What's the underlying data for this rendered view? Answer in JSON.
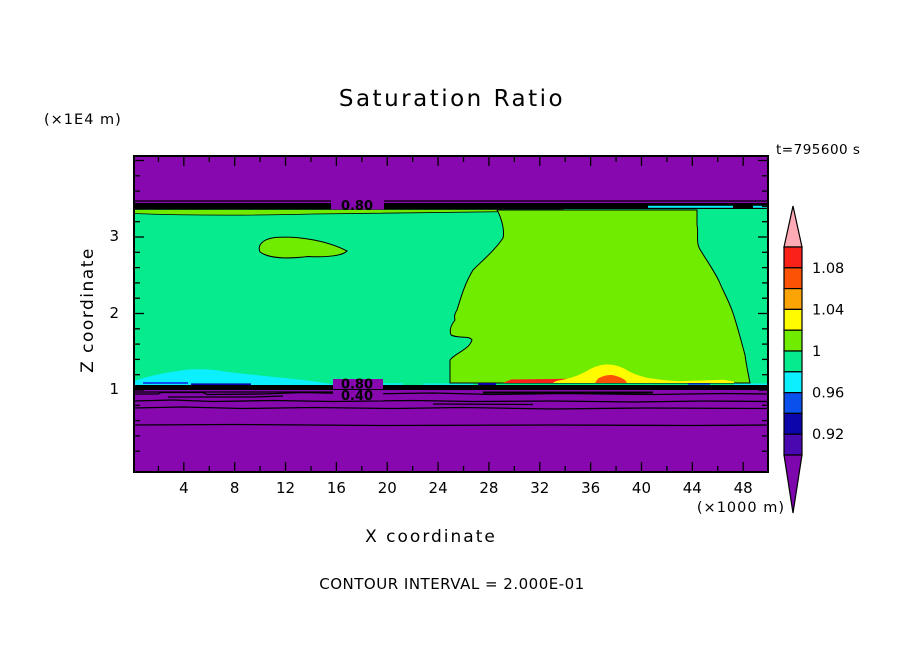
{
  "title": "Saturation Ratio",
  "timestamp": "t=795600 s",
  "y_axis_unit": "(×1E4 m)",
  "x_axis_unit": "(×1000 m)",
  "x_axis_label": "X coordinate",
  "y_axis_label": "Z coordinate",
  "footer": "CONTOUR INTERVAL = 2.000E-01",
  "colors": {
    "field_purple": "#8808B0",
    "black": "#000000",
    "background": "#ffffff"
  },
  "chart_data": {
    "type": "heatmap",
    "subtype": "filled-contour",
    "title": "Saturation Ratio",
    "xlabel": "X coordinate",
    "ylabel": "Z coordinate",
    "x_unit": "(×1000 m)",
    "y_unit": "(×1E4 m)",
    "time_annotation": "t=795600 s",
    "contour_interval": 0.2,
    "contour_interval_text": "CONTOUR INTERVAL = 2.000E-01",
    "xlim": [
      0,
      50
    ],
    "ylim": [
      0,
      4.1
    ],
    "x_ticks": [
      4,
      8,
      12,
      16,
      20,
      24,
      28,
      32,
      36,
      40,
      44,
      48
    ],
    "y_ticks": [
      1,
      2,
      3
    ],
    "grid": false,
    "legend_position": "right-colorbar",
    "contour_labels": {
      "upper_band": "0.80",
      "lower_band_1": "0.80",
      "lower_band_2": "0.40"
    },
    "colorbar": {
      "labels": [
        "1.08",
        "1.04",
        "1",
        "0.96",
        "0.92"
      ],
      "boundaries": [
        1.1,
        1.08,
        1.06,
        1.04,
        1.02,
        1.0,
        0.98,
        0.96,
        0.94,
        0.92,
        0.9
      ],
      "over_color": "#FFABB5",
      "under_color": "#7D06AC",
      "box_colors": [
        "#F92118",
        "#FB5303",
        "#FDA405",
        "#FFFC00",
        "#6FEC00",
        "#06EB8D",
        "#0BEFFE",
        "#0A50EC",
        "#0D05AC",
        "#4A08B0"
      ]
    },
    "field_regions": [
      {
        "region": "top band (z ≈ 3.4–4.1)",
        "value": "below 0.2 (under-range, purple)"
      },
      {
        "region": "contour-line band at z ≈ 3.35",
        "value": "0.40/0.60/0.80 contours packed, label 0.80"
      },
      {
        "region": "middle band left (x ≈ 0–28)",
        "value": "0.98–1.00 (spring green)"
      },
      {
        "region": "middle band right lobe (x ≈ 25–47)",
        "value": "1.00–1.02 (yellow-green)"
      },
      {
        "region": "small lens at x ≈ 10–17, z ≈ 2.8",
        "value": "1.00–1.02 (yellow-green)"
      },
      {
        "region": "thin strip below top band left",
        "value": "1.00–1.02 (yellow-green)"
      },
      {
        "region": "cyan bump near x ≈ 2–15, z ≈ 1.15",
        "value": "0.96–0.98"
      },
      {
        "region": "warm bump near x ≈ 36–40, z ≈ 1.15",
        "value": "1.02–1.06 (yellow with orange core)"
      },
      {
        "region": "red sliver near x ≈ 30–36, z ≈ 1.1",
        "value": "1.06–1.10"
      },
      {
        "region": "contour-line band at z ≈ 1.05",
        "value": "labels 0.80 and 0.40"
      },
      {
        "region": "bottom band (z ≈ 0–1.0)",
        "value": "below 0.2 (under-range, purple)"
      }
    ]
  }
}
